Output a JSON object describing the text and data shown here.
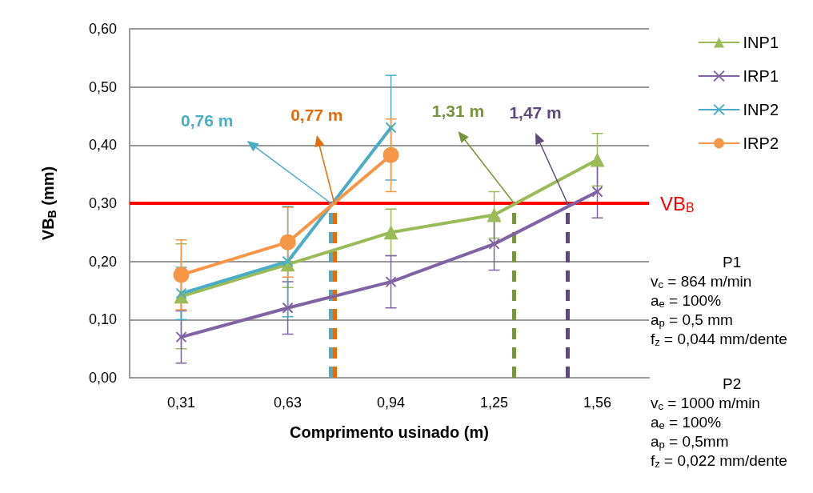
{
  "chart_data": {
    "type": "line",
    "xlabel": "Comprimento usinado (m)",
    "ylabel": "VB$_{B}$ (mm)",
    "x": [
      0.31,
      0.63,
      0.94,
      1.25,
      1.56
    ],
    "xlim": [
      0.155,
      1.715
    ],
    "xticks": [
      {
        "value": 0.31,
        "label": "0,31"
      },
      {
        "value": 0.63,
        "label": "0,63"
      },
      {
        "value": 0.94,
        "label": "0,94"
      },
      {
        "value": 1.25,
        "label": "1,25"
      },
      {
        "value": 1.56,
        "label": "1,56"
      }
    ],
    "ylim": [
      0,
      0.6
    ],
    "yticks": [
      {
        "value": 0,
        "label": "0,00"
      },
      {
        "value": 0.1,
        "label": "0,10"
      },
      {
        "value": 0.2,
        "label": "0,20"
      },
      {
        "value": 0.3,
        "label": "0,30"
      },
      {
        "value": 0.4,
        "label": "0,40"
      },
      {
        "value": 0.5,
        "label": "0,50"
      },
      {
        "value": 0.6,
        "label": "0,60"
      }
    ],
    "grid": "y",
    "legend": "right",
    "series": [
      {
        "name": "INP1",
        "color": "#9bbb59",
        "marker": "triangle",
        "values": [
          0.14,
          0.195,
          0.25,
          0.28,
          0.375
        ],
        "errors": [
          0.09,
          0.04,
          0.04,
          0.04,
          0.045
        ]
      },
      {
        "name": "IRP1",
        "color": "#8064a2",
        "marker": "cross",
        "values": [
          0.07,
          0.12,
          0.165,
          0.23,
          0.32
        ],
        "errors": [
          0.045,
          0.045,
          0.045,
          0.045,
          0.045
        ]
      },
      {
        "name": "INP2",
        "color": "#4bacc6",
        "marker": "cross",
        "values": [
          0.145,
          0.2,
          0.43,
          null,
          null
        ],
        "errors": [
          0.045,
          0.095,
          0.09,
          null,
          null
        ]
      },
      {
        "name": "IRP2",
        "color": "#f79646",
        "marker": "circle",
        "values": [
          0.177,
          0.233,
          0.383,
          null,
          null
        ],
        "errors": [
          0.06,
          0.06,
          [
            0.32,
            0.445
          ],
          null,
          null
        ]
      }
    ],
    "ref_lines": [
      {
        "axis": "y",
        "value": 0.3,
        "label": "VB$_{B}$",
        "color": "#ff0000",
        "line_style": "solid"
      },
      {
        "axis": "x",
        "value": 0.76,
        "label": "0,76 m",
        "color": "#4bacc6",
        "line_style": "dashed"
      },
      {
        "axis": "x",
        "value": 0.77,
        "label": "0,77 m",
        "color": "#e46c0a",
        "line_style": "dashed"
      },
      {
        "axis": "x",
        "value": 1.31,
        "label": "1,31 m",
        "color": "#77933c",
        "line_style": "dashed"
      },
      {
        "axis": "x",
        "value": 1.47,
        "label": "1,47 m",
        "color": "#604a7b",
        "line_style": "dashed"
      }
    ],
    "annotations": [
      "P1",
      "v$_{c}$ = 864 m/min",
      "a$_{e}$ = 100%",
      "a$_{p}$ = 0,5 mm",
      "f$_{z}$ = 0,044 mm/dente",
      "P2",
      "v$_{c}$ = 1000 m/min",
      "a$_{e}$ = 100%",
      "a$_{p}$ = 0,5mm",
      "f$_{z}$ = 0,022 mm/dente"
    ]
  }
}
